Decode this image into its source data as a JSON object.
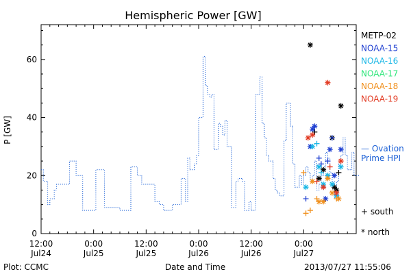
{
  "chart_data": {
    "type": "line",
    "title": "Hemispheric Power [GW]",
    "xlabel": "Date and Time",
    "ylabel": "P [GW]",
    "ylim": [
      0,
      72
    ],
    "yticks": [
      0,
      20,
      40,
      60
    ],
    "xlim": [
      "2013-07-24 12:00",
      "2013-07-27 12:00"
    ],
    "xticks": [
      {
        "t": "2013-07-24 12:00",
        "top": "12:00",
        "bottom": "Jul24"
      },
      {
        "t": "2013-07-25 00:00",
        "top": "0:00",
        "bottom": "Jul25"
      },
      {
        "t": "2013-07-25 12:00",
        "top": "12:00",
        "bottom": "Jul25"
      },
      {
        "t": "2013-07-26 00:00",
        "top": "0:00",
        "bottom": "Jul26"
      },
      {
        "t": "2013-07-26 12:00",
        "top": "12:00",
        "bottom": "Jul26"
      },
      {
        "t": "2013-07-27 00:00",
        "top": "0:00",
        "bottom": "Jul27"
      }
    ],
    "legend": {
      "placement": "right",
      "entries": [
        {
          "name": "METP-02",
          "color": "#000000"
        },
        {
          "name": "NOAA-15",
          "color": "#1f3fd1"
        },
        {
          "name": "NOAA-16",
          "color": "#19b7e6"
        },
        {
          "name": "NOAA-17",
          "color": "#2ee67a"
        },
        {
          "name": "NOAA-18",
          "color": "#f0901e"
        },
        {
          "name": "NOAA-19",
          "color": "#e23a22"
        }
      ],
      "ovation": {
        "line1": "— Ovation",
        "line2": "Prime HPI",
        "color": "#1a5fd6"
      },
      "south": "+ south",
      "north": "* north"
    },
    "footer": {
      "left": "Plot: CCMC",
      "right": "2013/07/27 11:55:06"
    },
    "series": [
      {
        "name": "Ovation Prime HPI",
        "color": "#1a5fd6",
        "style": "dotted-step",
        "x": [
          "2013-07-24 12:00",
          "2013-07-24 12:30",
          "2013-07-24 13:30",
          "2013-07-24 14:00",
          "2013-07-24 15:00",
          "2013-07-24 15:30",
          "2013-07-24 17:30",
          "2013-07-24 18:30",
          "2013-07-24 20:00",
          "2013-07-24 21:30",
          "2013-07-24 22:30",
          "2013-07-25 00:30",
          "2013-07-25 02:30",
          "2013-07-25 04:00",
          "2013-07-25 06:00",
          "2013-07-25 07:00",
          "2013-07-25 08:30",
          "2013-07-25 09:00",
          "2013-07-25 10:00",
          "2013-07-25 11:00",
          "2013-07-25 13:00",
          "2013-07-25 14:00",
          "2013-07-25 15:00",
          "2013-07-25 16:00",
          "2013-07-25 17:00",
          "2013-07-25 18:00",
          "2013-07-25 19:00",
          "2013-07-25 20:00",
          "2013-07-25 21:00",
          "2013-07-25 21:30",
          "2013-07-25 22:00",
          "2013-07-25 23:00",
          "2013-07-25 23:30",
          "2013-07-26 00:00",
          "2013-07-26 01:00",
          "2013-07-26 01:30",
          "2013-07-26 02:00",
          "2013-07-26 02:30",
          "2013-07-26 03:00",
          "2013-07-26 03:30",
          "2013-07-26 04:00",
          "2013-07-26 04:30",
          "2013-07-26 05:00",
          "2013-07-26 05:30",
          "2013-07-26 06:00",
          "2013-07-26 06:30",
          "2013-07-26 07:30",
          "2013-07-26 08:00",
          "2013-07-26 08:30",
          "2013-07-26 09:00",
          "2013-07-26 10:00",
          "2013-07-26 10:30",
          "2013-07-26 11:00",
          "2013-07-26 11:30",
          "2013-07-26 12:00",
          "2013-07-26 12:30",
          "2013-07-26 13:00",
          "2013-07-26 14:00",
          "2013-07-26 14:30",
          "2013-07-26 15:00",
          "2013-07-26 15:30",
          "2013-07-26 16:00",
          "2013-07-26 17:00",
          "2013-07-26 17:30",
          "2013-07-26 18:00",
          "2013-07-26 18:30",
          "2013-07-26 19:00",
          "2013-07-26 19:30",
          "2013-07-26 20:00",
          "2013-07-26 21:00",
          "2013-07-26 21:30",
          "2013-07-26 22:00",
          "2013-07-26 23:00",
          "2013-07-26 23:30",
          "2013-07-27 00:00",
          "2013-07-27 00:30",
          "2013-07-27 01:00",
          "2013-07-27 01:30",
          "2013-07-27 02:00",
          "2013-07-27 02:30",
          "2013-07-27 03:00",
          "2013-07-27 03:30",
          "2013-07-27 04:00",
          "2013-07-27 04:30",
          "2013-07-27 05:00",
          "2013-07-27 05:30",
          "2013-07-27 06:00",
          "2013-07-27 06:30",
          "2013-07-27 07:00",
          "2013-07-27 07:30",
          "2013-07-27 08:00",
          "2013-07-27 08:30",
          "2013-07-27 09:00",
          "2013-07-27 09:30",
          "2013-07-27 10:00",
          "2013-07-27 10:30",
          "2013-07-27 11:00",
          "2013-07-27 11:30"
        ],
        "y": [
          22,
          18,
          10,
          12,
          15,
          17,
          17,
          25,
          20,
          8,
          8,
          22,
          9,
          9,
          8,
          8,
          23,
          23,
          20,
          17,
          17,
          11,
          10,
          8,
          8,
          10,
          10,
          19,
          11,
          26,
          22,
          24,
          27,
          40,
          61,
          51,
          48,
          47,
          48,
          29,
          29,
          38,
          37,
          34,
          39,
          30,
          9,
          9,
          18,
          19,
          18,
          8,
          8,
          11,
          8,
          8,
          48,
          54,
          38,
          33,
          27,
          25,
          19,
          15,
          14,
          13,
          13,
          32,
          45,
          37,
          24,
          16,
          20,
          17,
          20,
          23,
          21,
          18,
          20,
          25,
          15,
          17,
          20,
          23,
          28,
          26,
          21,
          18,
          16,
          18,
          24,
          27,
          33,
          27,
          22,
          22,
          28,
          20
        ]
      },
      {
        "name": "METP-02",
        "color": "#000000",
        "points": [
          {
            "x": "2013-07-27 01:30",
            "y": 65,
            "m": "north"
          },
          {
            "x": "2013-07-27 02:30",
            "y": 35,
            "m": "south"
          },
          {
            "x": "2013-07-27 03:30",
            "y": 19,
            "m": "north"
          },
          {
            "x": "2013-07-27 04:30",
            "y": 22,
            "m": "north"
          },
          {
            "x": "2013-07-27 05:30",
            "y": 20,
            "m": "south"
          },
          {
            "x": "2013-07-27 06:30",
            "y": 33,
            "m": "north"
          },
          {
            "x": "2013-07-27 07:00",
            "y": 16,
            "m": "north"
          },
          {
            "x": "2013-07-27 07:30",
            "y": 15,
            "m": "north"
          },
          {
            "x": "2013-07-27 08:00",
            "y": 21,
            "m": "south"
          },
          {
            "x": "2013-07-27 08:30",
            "y": 44,
            "m": "north"
          }
        ]
      },
      {
        "name": "NOAA-15",
        "color": "#1f3fd1",
        "points": [
          {
            "x": "2013-07-27 00:30",
            "y": 12,
            "m": "south"
          },
          {
            "x": "2013-07-27 01:30",
            "y": 30,
            "m": "north"
          },
          {
            "x": "2013-07-27 02:00",
            "y": 36,
            "m": "north"
          },
          {
            "x": "2013-07-27 02:30",
            "y": 37,
            "m": "north"
          },
          {
            "x": "2013-07-27 03:30",
            "y": 26,
            "m": "south"
          },
          {
            "x": "2013-07-27 04:00",
            "y": 24,
            "m": "south"
          },
          {
            "x": "2013-07-27 04:30",
            "y": 16,
            "m": "south"
          },
          {
            "x": "2013-07-27 05:00",
            "y": 12,
            "m": "north"
          },
          {
            "x": "2013-07-27 05:30",
            "y": 25,
            "m": "south"
          },
          {
            "x": "2013-07-27 06:00",
            "y": 29,
            "m": "north"
          },
          {
            "x": "2013-07-27 06:30",
            "y": 33,
            "m": "south"
          },
          {
            "x": "2013-07-27 07:00",
            "y": 20,
            "m": "north"
          },
          {
            "x": "2013-07-27 07:30",
            "y": 13,
            "m": "north"
          },
          {
            "x": "2013-07-27 08:30",
            "y": 29,
            "m": "north"
          }
        ]
      },
      {
        "name": "NOAA-16",
        "color": "#19b7e6",
        "points": [
          {
            "x": "2013-07-27 00:30",
            "y": 16,
            "m": "north"
          },
          {
            "x": "2013-07-27 02:00",
            "y": 30,
            "m": "north"
          },
          {
            "x": "2013-07-27 03:00",
            "y": 31,
            "m": "south"
          },
          {
            "x": "2013-07-27 03:30",
            "y": 23,
            "m": "north"
          },
          {
            "x": "2013-07-27 04:00",
            "y": 21,
            "m": "south"
          },
          {
            "x": "2013-07-27 04:30",
            "y": 17,
            "m": "north"
          },
          {
            "x": "2013-07-27 05:30",
            "y": 20,
            "m": "north"
          },
          {
            "x": "2013-07-27 06:30",
            "y": 17,
            "m": "north"
          },
          {
            "x": "2013-07-27 07:30",
            "y": 13,
            "m": "north"
          },
          {
            "x": "2013-07-27 08:30",
            "y": 23,
            "m": "north"
          }
        ]
      },
      {
        "name": "NOAA-17",
        "color": "#2ee67a",
        "points": []
      },
      {
        "name": "NOAA-18",
        "color": "#f0901e",
        "points": [
          {
            "x": "2013-07-27 00:00",
            "y": 21,
            "m": "south"
          },
          {
            "x": "2013-07-27 00:30",
            "y": 7,
            "m": "south"
          },
          {
            "x": "2013-07-27 01:30",
            "y": 8,
            "m": "south"
          },
          {
            "x": "2013-07-27 02:00",
            "y": 18,
            "m": "north"
          },
          {
            "x": "2013-07-27 03:00",
            "y": 12,
            "m": "south"
          },
          {
            "x": "2013-07-27 03:30",
            "y": 11,
            "m": "north"
          },
          {
            "x": "2013-07-27 04:30",
            "y": 11,
            "m": "north"
          },
          {
            "x": "2013-07-27 05:30",
            "y": 19,
            "m": "north"
          },
          {
            "x": "2013-07-27 06:30",
            "y": 14,
            "m": "north"
          },
          {
            "x": "2013-07-27 07:30",
            "y": 12,
            "m": "south"
          },
          {
            "x": "2013-07-27 08:00",
            "y": 12,
            "m": "north"
          }
        ]
      },
      {
        "name": "NOAA-19",
        "color": "#e23a22",
        "points": [
          {
            "x": "2013-07-27 01:00",
            "y": 33,
            "m": "north"
          },
          {
            "x": "2013-07-27 02:00",
            "y": 34,
            "m": "north"
          },
          {
            "x": "2013-07-27 03:00",
            "y": 18,
            "m": "south"
          },
          {
            "x": "2013-07-27 04:30",
            "y": 16,
            "m": "north"
          },
          {
            "x": "2013-07-27 05:30",
            "y": 52,
            "m": "north"
          },
          {
            "x": "2013-07-27 06:00",
            "y": 23,
            "m": "south"
          },
          {
            "x": "2013-07-27 07:30",
            "y": 14,
            "m": "north"
          },
          {
            "x": "2013-07-27 08:30",
            "y": 25,
            "m": "north"
          }
        ]
      }
    ]
  }
}
